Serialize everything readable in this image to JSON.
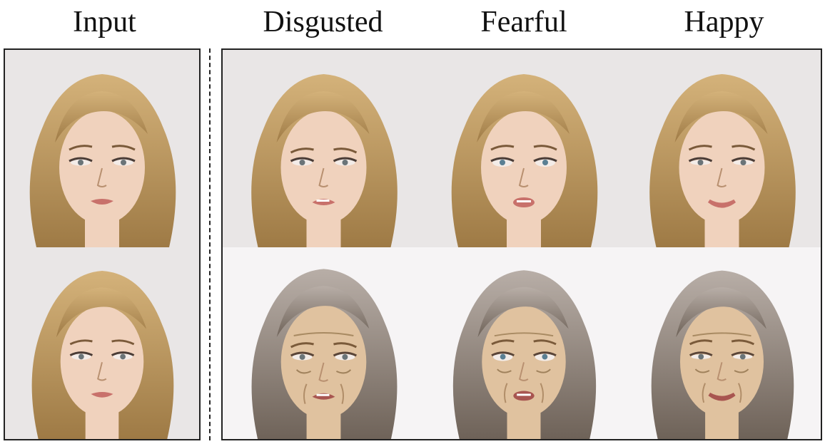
{
  "headers": {
    "input": "Input",
    "disgusted": "Disgusted",
    "fearful": "Fearful",
    "happy": "Happy"
  },
  "colors": {
    "hair_young": "#d4b27a",
    "hair_young_dark": "#9e7a45",
    "hair_old": "#b8aea7",
    "hair_old_dark": "#6e6258",
    "skin": "#f0d2bd",
    "skin_old": "#e0c29f",
    "lips": "#c8716b",
    "bg_top": "#e9e6e6",
    "bg_bottom": "#f6f4f5"
  },
  "faces": [
    {
      "column": "input",
      "row": "young",
      "expression": "neutral"
    },
    {
      "column": "input",
      "row": "young",
      "expression": "neutral"
    },
    {
      "column": "disgusted",
      "row": "young",
      "expression": "disgusted"
    },
    {
      "column": "fearful",
      "row": "young",
      "expression": "fearful"
    },
    {
      "column": "happy",
      "row": "young",
      "expression": "happy"
    },
    {
      "column": "disgusted",
      "row": "old",
      "expression": "disgusted"
    },
    {
      "column": "fearful",
      "row": "old",
      "expression": "fearful"
    },
    {
      "column": "happy",
      "row": "old",
      "expression": "happy"
    }
  ]
}
